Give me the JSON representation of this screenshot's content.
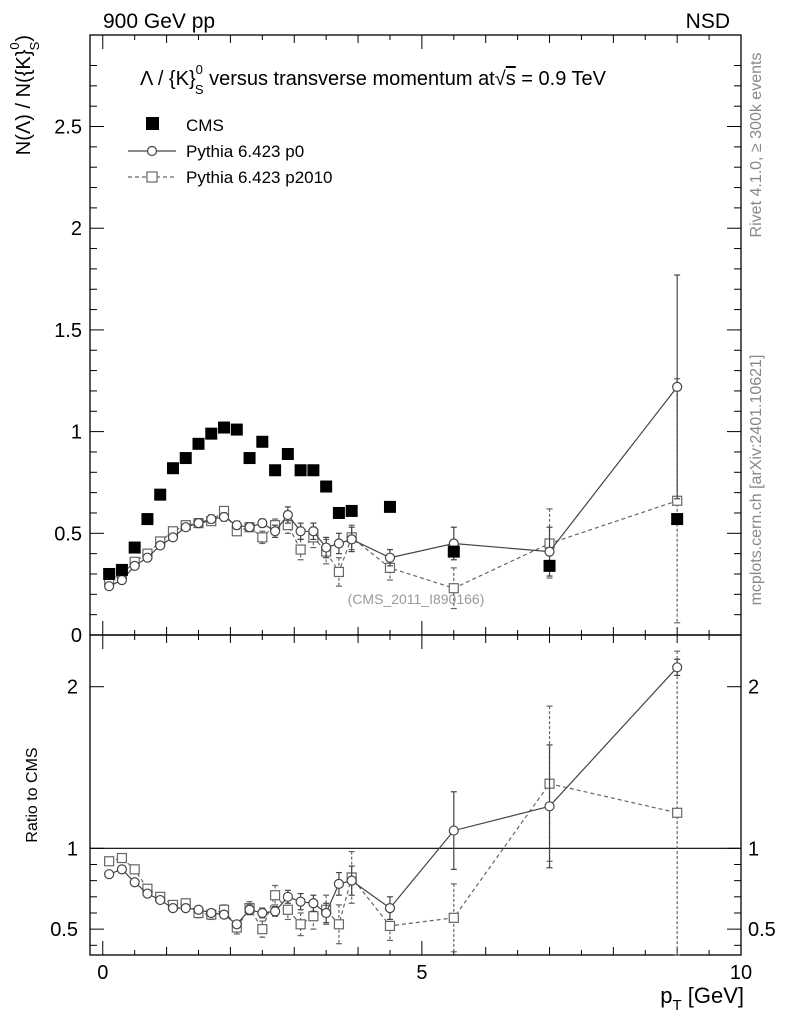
{
  "header": {
    "left_label": "900 GeV pp",
    "right_label": "NSD"
  },
  "side_labels": {
    "rivet": "Rivet 4.1.0, ≥ 300k events",
    "mcplots": "mcplots.cern.ch [arXiv:2401.10621]"
  },
  "chart_data": [
    {
      "type": "scatter",
      "panel": "main",
      "title": "Λ / {K}⁰ₛ versus transverse momentum at √s = 0.9 TeV",
      "title_parts": {
        "pre": "Λ / {K}",
        "sup": "0",
        "sub": "S",
        "mid": " versus transverse momentum at",
        "sqrt": "√",
        "s": "s",
        "post": " = 0.9 TeV"
      },
      "ylabel": "N(Λ)  /  N({K}⁰ₛ)",
      "ylabel_parts": {
        "pre": "N(Λ)  /  N({K}",
        "sup": "0",
        "sub": "S",
        "post": ")"
      },
      "xlim": [
        -0.2,
        10
      ],
      "ylim": [
        0,
        2.95
      ],
      "yticks": [
        0,
        0.5,
        1,
        1.5,
        2,
        2.5
      ],
      "ytick_labels": [
        "0",
        "0.5",
        "1",
        "1.5",
        "2",
        "2.5"
      ],
      "watermark": "(CMS_2011_I890166)",
      "series": [
        {
          "name": "CMS",
          "style": "filled-square",
          "color": "#000000",
          "x": [
            0.1,
            0.3,
            0.5,
            0.7,
            0.9,
            1.1,
            1.3,
            1.5,
            1.7,
            1.9,
            2.1,
            2.3,
            2.5,
            2.7,
            2.9,
            3.1,
            3.3,
            3.5,
            3.7,
            3.9,
            4.5,
            5.5,
            7.0,
            9.0
          ],
          "y": [
            0.3,
            0.32,
            0.43,
            0.57,
            0.69,
            0.82,
            0.87,
            0.94,
            0.99,
            1.02,
            1.01,
            0.87,
            0.95,
            0.81,
            0.89,
            0.81,
            0.81,
            0.73,
            0.6,
            0.61,
            0.63,
            0.41,
            0.34,
            0.57
          ],
          "yerr": [
            0,
            0,
            0,
            0,
            0,
            0,
            0,
            0,
            0,
            0,
            0,
            0,
            0,
            0,
            0,
            0,
            0,
            0,
            0,
            0,
            0,
            0,
            0,
            0
          ]
        },
        {
          "name": "Pythia 6.423 p0",
          "style": "open-circle-solid",
          "color": "#444444",
          "x": [
            0.1,
            0.3,
            0.5,
            0.7,
            0.9,
            1.1,
            1.3,
            1.5,
            1.7,
            1.9,
            2.1,
            2.3,
            2.5,
            2.7,
            2.9,
            3.1,
            3.3,
            3.5,
            3.7,
            3.9,
            4.5,
            5.5,
            7.0,
            9.0
          ],
          "y": [
            0.24,
            0.27,
            0.34,
            0.38,
            0.44,
            0.48,
            0.53,
            0.55,
            0.57,
            0.58,
            0.54,
            0.53,
            0.55,
            0.51,
            0.59,
            0.51,
            0.51,
            0.43,
            0.45,
            0.47,
            0.38,
            0.45,
            0.41,
            1.22
          ],
          "yerr": [
            0.01,
            0.01,
            0.01,
            0.01,
            0.01,
            0.01,
            0.01,
            0.02,
            0.02,
            0.02,
            0.02,
            0.02,
            0.02,
            0.03,
            0.04,
            0.04,
            0.04,
            0.05,
            0.05,
            0.06,
            0.04,
            0.08,
            0.12,
            0.55
          ]
        },
        {
          "name": "Pythia 6.423 p2010",
          "style": "open-square-dashed",
          "color": "#666666",
          "x": [
            0.1,
            0.3,
            0.5,
            0.7,
            0.9,
            1.1,
            1.3,
            1.5,
            1.7,
            1.9,
            2.1,
            2.3,
            2.5,
            2.7,
            2.9,
            3.1,
            3.3,
            3.5,
            3.7,
            3.9,
            4.5,
            5.5,
            7.0,
            9.0
          ],
          "y": [
            0.27,
            0.3,
            0.36,
            0.4,
            0.46,
            0.51,
            0.54,
            0.55,
            0.56,
            0.61,
            0.51,
            0.53,
            0.48,
            0.54,
            0.54,
            0.42,
            0.48,
            0.41,
            0.31,
            0.48,
            0.33,
            0.23,
            0.45,
            0.66
          ],
          "yerr": [
            0.01,
            0.01,
            0.01,
            0.01,
            0.01,
            0.01,
            0.02,
            0.02,
            0.02,
            0.02,
            0.02,
            0.02,
            0.03,
            0.03,
            0.04,
            0.05,
            0.05,
            0.06,
            0.07,
            0.06,
            0.06,
            0.1,
            0.17,
            0.6
          ]
        }
      ],
      "legend": [
        {
          "label": "CMS",
          "style": "filled-square"
        },
        {
          "label": "Pythia 6.423 p0",
          "style": "open-circle-solid"
        },
        {
          "label": "Pythia 6.423 p2010",
          "style": "open-square-dashed"
        }
      ],
      "legend_position": "top-left"
    },
    {
      "type": "scatter",
      "panel": "ratio",
      "ylabel": "Ratio to CMS",
      "xlabel": "p_T [GeV]",
      "xlabel_parts": {
        "p": "p",
        "sub": "T",
        "unit": " [GeV]"
      },
      "xlim": [
        -0.2,
        10
      ],
      "ylim": [
        0.34,
        2.32
      ],
      "xticks": [
        0,
        5,
        10
      ],
      "xtick_labels": [
        "0",
        "5",
        "10"
      ],
      "yticks": [
        0.5,
        1,
        2
      ],
      "ytick_labels": [
        "0.5",
        "1",
        "2"
      ],
      "reference_line": 1,
      "series": [
        {
          "name": "Pythia 6.423 p0",
          "style": "open-circle-solid",
          "color": "#444444",
          "x": [
            0.1,
            0.3,
            0.5,
            0.7,
            0.9,
            1.1,
            1.3,
            1.5,
            1.7,
            1.9,
            2.1,
            2.3,
            2.5,
            2.7,
            2.9,
            3.1,
            3.3,
            3.5,
            3.7,
            3.9,
            4.5,
            5.5,
            7.0,
            9.0
          ],
          "y": [
            0.84,
            0.87,
            0.79,
            0.72,
            0.68,
            0.63,
            0.63,
            0.62,
            0.6,
            0.59,
            0.53,
            0.62,
            0.6,
            0.61,
            0.7,
            0.67,
            0.66,
            0.6,
            0.78,
            0.8,
            0.63,
            1.11,
            1.26,
            2.12
          ],
          "yerr": [
            0.01,
            0.01,
            0.01,
            0.01,
            0.01,
            0.01,
            0.02,
            0.02,
            0.02,
            0.02,
            0.02,
            0.03,
            0.03,
            0.03,
            0.04,
            0.05,
            0.05,
            0.06,
            0.07,
            0.09,
            0.07,
            0.24,
            0.38,
            0.05
          ]
        },
        {
          "name": "Pythia 6.423 p2010",
          "style": "open-square-dashed",
          "color": "#666666",
          "x": [
            0.1,
            0.3,
            0.5,
            0.7,
            0.9,
            1.1,
            1.3,
            1.5,
            1.7,
            1.9,
            2.1,
            2.3,
            2.5,
            2.7,
            2.9,
            3.1,
            3.3,
            3.5,
            3.7,
            3.9,
            4.5,
            5.5,
            7.0,
            9.0
          ],
          "y": [
            0.92,
            0.94,
            0.87,
            0.75,
            0.7,
            0.65,
            0.66,
            0.6,
            0.59,
            0.62,
            0.51,
            0.63,
            0.5,
            0.71,
            0.62,
            0.53,
            0.58,
            0.62,
            0.53,
            0.82,
            0.52,
            0.57,
            1.4,
            1.22
          ],
          "yerr": [
            0.01,
            0.01,
            0.02,
            0.02,
            0.02,
            0.02,
            0.02,
            0.03,
            0.03,
            0.03,
            0.04,
            0.04,
            0.05,
            0.06,
            0.06,
            0.07,
            0.08,
            0.09,
            0.12,
            0.16,
            0.09,
            0.21,
            0.48,
            1.0
          ]
        }
      ]
    }
  ]
}
